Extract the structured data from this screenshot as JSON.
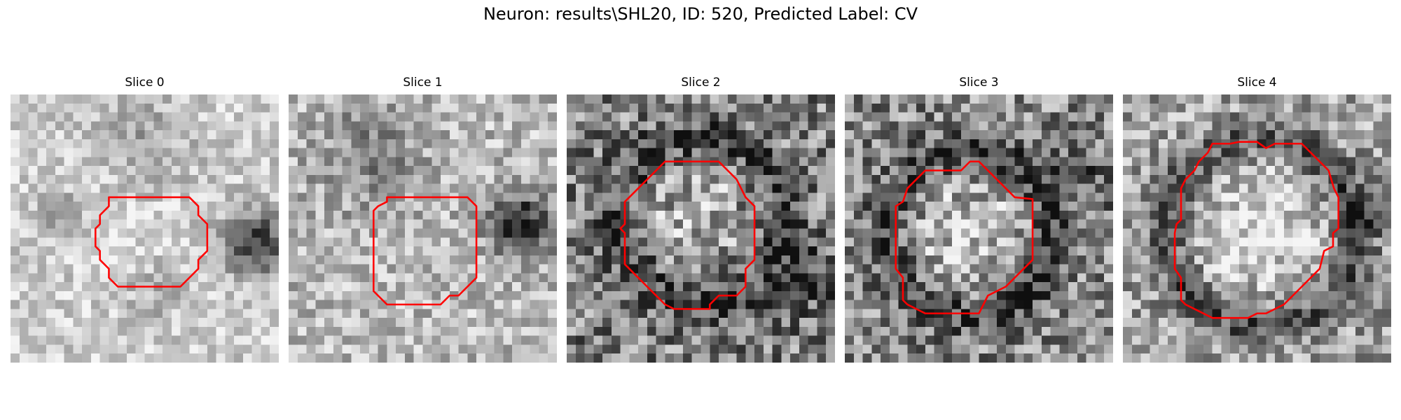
{
  "figure": {
    "suptitle": "Neuron: results\\SHL20, ID: 520, Predicted Label: CV",
    "contour_color": "#ff0000",
    "colormap": "grayscale"
  },
  "panels": [
    {
      "title": "Slice 0"
    },
    {
      "title": "Slice 1"
    },
    {
      "title": "Slice 2"
    },
    {
      "title": "Slice 3"
    },
    {
      "title": "Slice 4"
    }
  ]
}
